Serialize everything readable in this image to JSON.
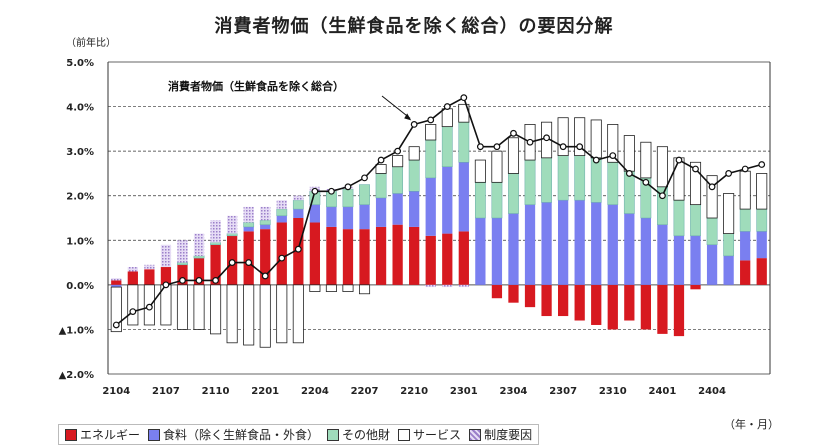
{
  "chart_data": {
    "type": "bar",
    "title": "消費者物価（生鮮食品を除く総合）の要因分解",
    "ylabel": "（前年比）",
    "xlabel": "（年・月）",
    "ylim": [
      -2.0,
      5.0
    ],
    "yticks": [
      5.0,
      4.0,
      3.0,
      2.0,
      1.0,
      0.0,
      -1.0,
      -2.0
    ],
    "ytick_labels": [
      "5.0%",
      "4.0%",
      "3.0%",
      "2.0%",
      "1.0%",
      "0.0%",
      "▲1.0%",
      "▲2.0%"
    ],
    "xtick_labels": [
      "2104",
      "2107",
      "2110",
      "2201",
      "2204",
      "2207",
      "2210",
      "2301",
      "2304",
      "2307",
      "2310",
      "2401",
      "2404"
    ],
    "categories": [
      "2104",
      "2105",
      "2106",
      "2107",
      "2108",
      "2109",
      "2110",
      "2111",
      "2112",
      "2201",
      "2202",
      "2203",
      "2204",
      "2205",
      "2206",
      "2207",
      "2208",
      "2209",
      "2210",
      "2211",
      "2212",
      "2301",
      "2302",
      "2303",
      "2304",
      "2305",
      "2306",
      "2307",
      "2308",
      "2309",
      "2310",
      "2311",
      "2312",
      "2401",
      "2402",
      "2403",
      "2404",
      "2405",
      "2406",
      "2407"
    ],
    "grid": true,
    "legend_position": "bottom",
    "series": [
      {
        "name": "エネルギー",
        "color": "#d71920",
        "values": [
          0.1,
          0.3,
          0.35,
          0.4,
          0.45,
          0.6,
          0.9,
          1.1,
          1.2,
          1.25,
          1.4,
          1.5,
          1.4,
          1.3,
          1.25,
          1.25,
          1.3,
          1.35,
          1.3,
          1.1,
          1.15,
          1.2,
          0.0,
          -0.3,
          -0.4,
          -0.5,
          -0.7,
          -0.7,
          -0.8,
          -0.9,
          -1.0,
          -0.8,
          -1.0,
          -1.1,
          -1.15,
          -0.1,
          0.0,
          0.0,
          0.55,
          0.6
        ]
      },
      {
        "name": "食料（除く生鮮食品・外食）",
        "color": "#7a7ff0",
        "values": [
          -0.05,
          0.0,
          0.0,
          0.0,
          0.0,
          0.0,
          0.0,
          0.0,
          0.1,
          0.1,
          0.15,
          0.2,
          0.4,
          0.45,
          0.5,
          0.55,
          0.65,
          0.7,
          0.8,
          1.3,
          1.5,
          1.55,
          1.5,
          1.5,
          1.6,
          1.8,
          1.85,
          1.9,
          1.9,
          1.85,
          1.8,
          1.6,
          1.5,
          1.35,
          1.1,
          1.1,
          0.9,
          0.65,
          0.65,
          0.6
        ]
      },
      {
        "name": "その他財",
        "color": "#a8e0c0",
        "values": [
          0.0,
          0.0,
          0.0,
          0.0,
          0.05,
          0.05,
          0.05,
          0.05,
          0.1,
          0.1,
          0.15,
          0.2,
          0.3,
          0.35,
          0.4,
          0.45,
          0.55,
          0.6,
          0.7,
          0.85,
          0.9,
          0.9,
          0.8,
          0.8,
          0.9,
          1.0,
          1.0,
          1.0,
          1.0,
          1.0,
          0.95,
          0.95,
          0.9,
          0.85,
          0.8,
          0.7,
          0.6,
          0.5,
          0.5,
          0.5
        ]
      },
      {
        "name": "サービス",
        "color": "#ffffff",
        "values": [
          -1.0,
          -0.9,
          -0.9,
          -0.9,
          -1.0,
          -1.0,
          -1.1,
          -1.3,
          -1.35,
          -1.4,
          -1.3,
          -1.3,
          -0.15,
          -0.15,
          -0.15,
          -0.2,
          0.2,
          0.25,
          0.3,
          0.35,
          0.4,
          0.4,
          0.5,
          0.7,
          0.8,
          0.8,
          0.8,
          0.85,
          0.85,
          0.85,
          0.85,
          0.8,
          0.8,
          0.9,
          0.95,
          0.95,
          0.95,
          0.9,
          0.85,
          0.8
        ]
      },
      {
        "name": "制度要因",
        "color": "#c9b7e6",
        "values": [
          0.05,
          0.1,
          0.1,
          0.5,
          0.5,
          0.5,
          0.5,
          0.4,
          0.35,
          0.3,
          0.2,
          0.1,
          0.1,
          0.05,
          0.05,
          0.0,
          0.0,
          0.0,
          0.0,
          -0.05,
          -0.05,
          -0.05,
          0.0,
          0.0,
          0.0,
          0.0,
          0.0,
          0.0,
          0.0,
          0.0,
          0.0,
          0.0,
          0.0,
          0.0,
          0.0,
          0.0,
          0.0,
          0.0,
          0.0,
          0.0
        ]
      }
    ],
    "line": {
      "name": "消費者物価（生鮮食品を除く総合）",
      "label": "消費者物価（生鮮食品を除く総合）",
      "values": [
        -0.9,
        -0.6,
        -0.5,
        0.0,
        0.1,
        0.1,
        0.1,
        0.5,
        0.5,
        0.2,
        0.6,
        0.8,
        2.1,
        2.1,
        2.2,
        2.4,
        2.8,
        3.0,
        3.6,
        3.7,
        4.0,
        4.2,
        3.1,
        3.1,
        3.4,
        3.2,
        3.3,
        3.1,
        3.1,
        2.8,
        2.9,
        2.5,
        2.3,
        2.0,
        2.8,
        2.6,
        2.2,
        2.5,
        2.6,
        2.7
      ]
    }
  },
  "legend_markers": [
    "■",
    "■",
    "□",
    "□",
    "▨"
  ]
}
